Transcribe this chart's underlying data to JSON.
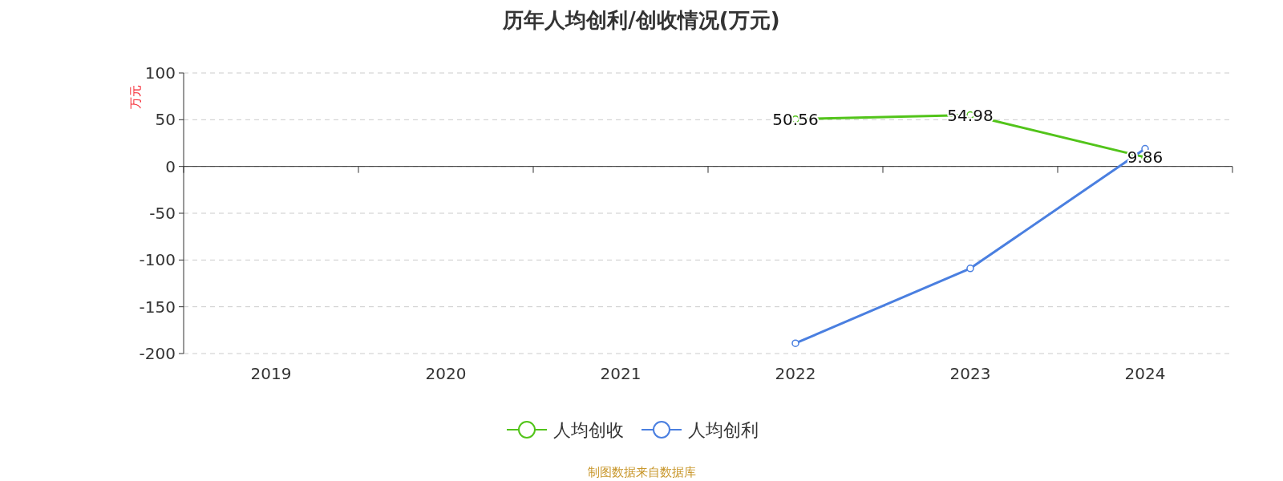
{
  "chart_data": {
    "type": "line",
    "title": "历年人均创利/创收情况(万元)",
    "ylabel": "万元",
    "categories": [
      "2019",
      "2020",
      "2021",
      "2022",
      "2023",
      "2024"
    ],
    "series": [
      {
        "name": "人均创收",
        "color": "#52c41a",
        "values": [
          null,
          null,
          null,
          50.56,
          54.98,
          9.86
        ],
        "value_labels": [
          null,
          null,
          null,
          "50.56",
          "54.98",
          "9.86"
        ]
      },
      {
        "name": "人均创利",
        "color": "#4a7fe0",
        "values": [
          null,
          null,
          null,
          -189,
          -109,
          19
        ]
      }
    ],
    "ylim": [
      -200,
      100
    ],
    "yticks": [
      -200,
      -150,
      -100,
      -50,
      0,
      50,
      100
    ],
    "grid": "y",
    "legend": "bottom",
    "marker": "circle",
    "annotations": [
      "制图数据来自数据库"
    ]
  }
}
